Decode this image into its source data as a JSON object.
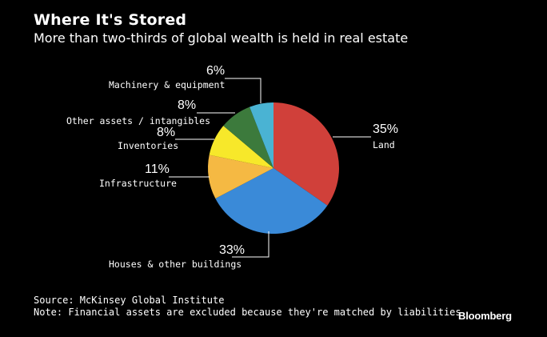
{
  "chart_data": {
    "type": "pie",
    "title": "Where It's Stored",
    "subtitle": "More than two-thirds of global wealth is held in real estate",
    "categories": [
      "Land",
      "Houses & other buildings",
      "Infrastructure",
      "Inventories",
      "Other assets / intangibles",
      "Machinery & equipment"
    ],
    "values": [
      35,
      33,
      11,
      8,
      8,
      6
    ],
    "value_labels": [
      "35%",
      "33%",
      "11%",
      "8%",
      "8%",
      "6%"
    ],
    "colors": [
      "#d0403a",
      "#3a8ad8",
      "#f5b943",
      "#f7e82a",
      "#3c7a3c",
      "#4ab3d3"
    ],
    "start": "12 o'clock",
    "direction": "clockwise"
  },
  "footer": {
    "source": "Source: McKinsey Global Institute",
    "note": "Note: Financial assets are excluded because they're matched by liabilities"
  },
  "brand": "Bloomberg"
}
